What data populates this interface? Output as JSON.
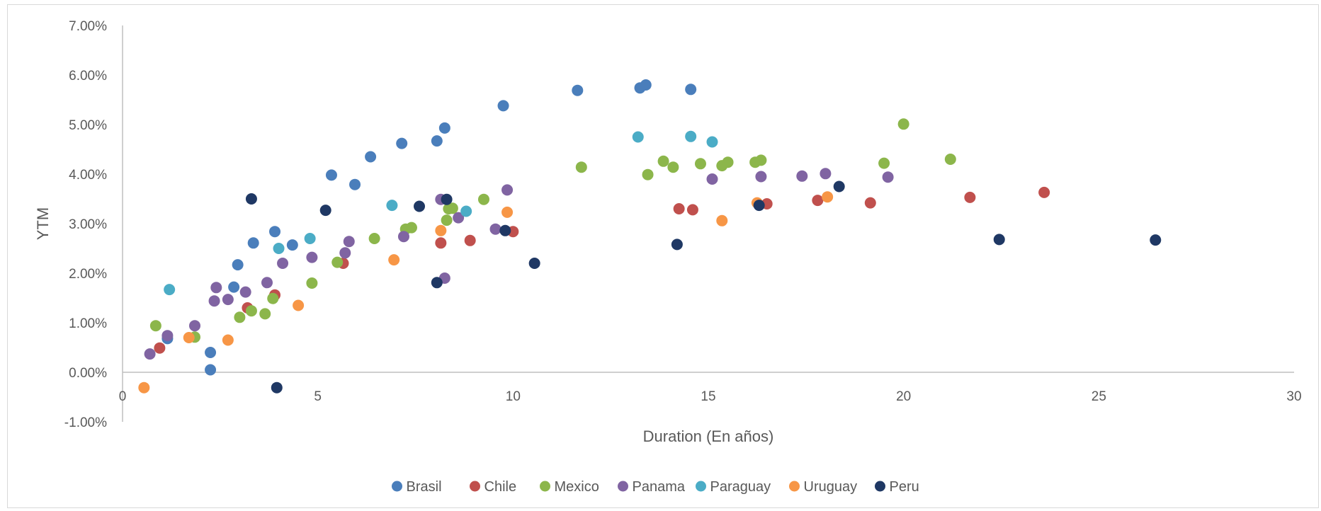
{
  "chart_data": {
    "type": "scatter",
    "title": "",
    "xlabel": "Duration (En años)",
    "ylabel": "YTM",
    "xlim": [
      0,
      30
    ],
    "ylim": [
      -1.0,
      7.0
    ],
    "x_ticks": [
      "0",
      "5",
      "10",
      "15",
      "20",
      "25",
      "30"
    ],
    "y_ticks": [
      "-1.00%",
      "0.00%",
      "1.00%",
      "2.00%",
      "3.00%",
      "4.00%",
      "5.00%",
      "6.00%",
      "7.00%"
    ],
    "grid": false,
    "legend_position": "bottom",
    "series": [
      {
        "name": "Brasil",
        "color": "#4a7ebb",
        "points": [
          [
            1.15,
            0.68
          ],
          [
            2.25,
            0.05
          ],
          [
            2.25,
            0.4
          ],
          [
            2.85,
            1.72
          ],
          [
            2.95,
            2.17
          ],
          [
            3.35,
            2.61
          ],
          [
            3.9,
            2.84
          ],
          [
            4.35,
            2.57
          ],
          [
            5.35,
            3.98
          ],
          [
            5.95,
            3.79
          ],
          [
            6.35,
            4.35
          ],
          [
            7.15,
            4.62
          ],
          [
            8.05,
            4.67
          ],
          [
            8.25,
            4.93
          ],
          [
            9.75,
            5.38
          ],
          [
            11.65,
            5.69
          ],
          [
            13.25,
            5.74
          ],
          [
            13.4,
            5.8
          ],
          [
            14.55,
            5.71
          ]
        ]
      },
      {
        "name": "Chile",
        "color": "#c0504d",
        "points": [
          [
            0.95,
            0.49
          ],
          [
            3.2,
            1.3
          ],
          [
            3.9,
            1.56
          ],
          [
            5.65,
            2.2
          ],
          [
            8.15,
            2.61
          ],
          [
            8.9,
            2.66
          ],
          [
            10.0,
            2.84
          ],
          [
            14.25,
            3.3
          ],
          [
            14.6,
            3.28
          ],
          [
            16.5,
            3.4
          ],
          [
            17.8,
            3.47
          ],
          [
            19.15,
            3.42
          ],
          [
            21.7,
            3.53
          ],
          [
            23.6,
            3.63
          ]
        ]
      },
      {
        "name": "Mexico",
        "color": "#8cb64b",
        "points": [
          [
            0.85,
            0.94
          ],
          [
            1.85,
            0.71
          ],
          [
            3.0,
            1.11
          ],
          [
            3.3,
            1.24
          ],
          [
            3.65,
            1.18
          ],
          [
            3.85,
            1.49
          ],
          [
            4.85,
            1.8
          ],
          [
            5.5,
            2.22
          ],
          [
            6.45,
            2.7
          ],
          [
            7.25,
            2.89
          ],
          [
            7.4,
            2.92
          ],
          [
            8.3,
            3.07
          ],
          [
            8.35,
            3.3
          ],
          [
            8.45,
            3.31
          ],
          [
            9.25,
            3.49
          ],
          [
            11.75,
            4.14
          ],
          [
            13.45,
            3.99
          ],
          [
            13.85,
            4.26
          ],
          [
            14.1,
            4.14
          ],
          [
            14.8,
            4.21
          ],
          [
            15.35,
            4.17
          ],
          [
            15.5,
            4.24
          ],
          [
            16.2,
            4.24
          ],
          [
            16.35,
            4.28
          ],
          [
            19.5,
            4.22
          ],
          [
            20.0,
            5.01
          ],
          [
            21.2,
            4.3
          ]
        ]
      },
      {
        "name": "Panama",
        "color": "#8064a2",
        "points": [
          [
            0.7,
            0.37
          ],
          [
            1.15,
            0.74
          ],
          [
            1.85,
            0.94
          ],
          [
            2.35,
            1.44
          ],
          [
            2.4,
            1.71
          ],
          [
            2.7,
            1.47
          ],
          [
            3.15,
            1.62
          ],
          [
            3.7,
            1.81
          ],
          [
            4.1,
            2.2
          ],
          [
            4.85,
            2.32
          ],
          [
            5.7,
            2.41
          ],
          [
            5.8,
            2.64
          ],
          [
            7.2,
            2.74
          ],
          [
            8.15,
            3.49
          ],
          [
            8.25,
            1.9
          ],
          [
            8.6,
            3.12
          ],
          [
            9.55,
            2.89
          ],
          [
            9.85,
            3.68
          ],
          [
            15.1,
            3.9
          ],
          [
            16.35,
            3.95
          ],
          [
            17.4,
            3.96
          ],
          [
            18.0,
            4.01
          ],
          [
            19.6,
            3.94
          ]
        ]
      },
      {
        "name": "Paraguay",
        "color": "#4bacc6",
        "points": [
          [
            1.2,
            1.67
          ],
          [
            4.0,
            2.5
          ],
          [
            4.8,
            2.7
          ],
          [
            6.9,
            3.37
          ],
          [
            8.8,
            3.25
          ],
          [
            13.2,
            4.75
          ],
          [
            14.55,
            4.76
          ],
          [
            15.1,
            4.65
          ]
        ]
      },
      {
        "name": "Uruguay",
        "color": "#f79646",
        "points": [
          [
            0.55,
            -0.31
          ],
          [
            1.7,
            0.7
          ],
          [
            2.7,
            0.65
          ],
          [
            4.5,
            1.35
          ],
          [
            6.95,
            2.27
          ],
          [
            8.15,
            2.86
          ],
          [
            9.85,
            3.23
          ],
          [
            15.35,
            3.06
          ],
          [
            16.25,
            3.42
          ],
          [
            18.05,
            3.54
          ]
        ]
      },
      {
        "name": "Peru",
        "color": "#1f3864",
        "points": [
          [
            3.3,
            3.5
          ],
          [
            3.95,
            -0.31
          ],
          [
            5.2,
            3.27
          ],
          [
            7.6,
            3.35
          ],
          [
            8.05,
            1.81
          ],
          [
            8.3,
            3.49
          ],
          [
            9.8,
            2.86
          ],
          [
            10.55,
            2.2
          ],
          [
            14.2,
            2.58
          ],
          [
            16.3,
            3.37
          ],
          [
            18.35,
            3.75
          ],
          [
            22.45,
            2.68
          ],
          [
            26.45,
            2.67
          ]
        ]
      }
    ]
  }
}
